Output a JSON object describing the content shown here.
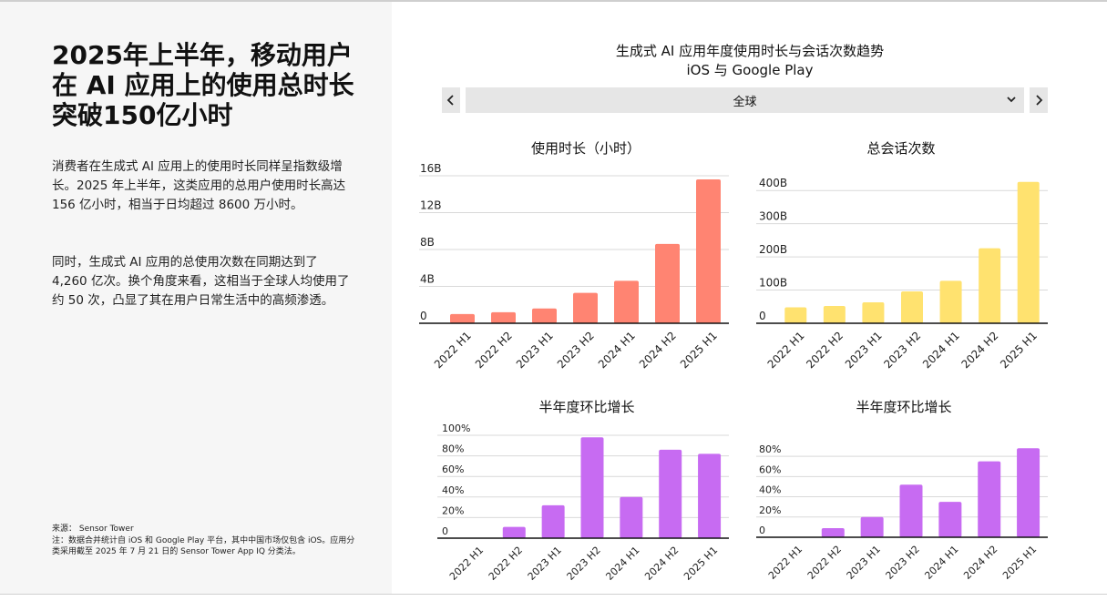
{
  "headline": [
    "2025年上半年，移动用户",
    "在 AI 应用上的使用总时长",
    "突破150亿小时"
  ],
  "paragraph1": "消费者在生成式 AI 应用上的使用时长同样呈指数级增长。2025 年上半年，这类应用的总用户使用时长高达 156 亿小时，相当于日均超过 8600 万小时。",
  "paragraph2": "同时，生成式 AI 应用的总使用次数在同期达到了 4,260 亿次。换个角度来看，这相当于全球人均使用了约 50 次，凸显了其在用户日常生活中的高频渗透。",
  "source": {
    "line1": "来源： Sensor Tower",
    "line2": "注：数据合并统计自 iOS 和 Google Play 平台，其中中国市场仅包含 iOS。应用分类采用截至 2025 年 7 月 21 日的 Sensor Tower App IQ 分类法。"
  },
  "main_title": {
    "line1": "生成式 AI 应用年度使用时长与会话次数趋势",
    "line2": "iOS 与 Google Play"
  },
  "region_select": {
    "value": "全球"
  },
  "icons": {
    "prev": "chevron-left-icon",
    "next": "chevron-right-icon",
    "dropdown": "chevron-down-icon"
  },
  "chart_data": [
    {
      "type": "bar",
      "title": "使用时长（小时）",
      "categories": [
        "2022 H1",
        "2022 H2",
        "2023 H1",
        "2023 H2",
        "2024 H1",
        "2024 H2",
        "2025 H1"
      ],
      "values": [
        1.0,
        1.2,
        1.6,
        3.3,
        4.6,
        8.6,
        15.6
      ],
      "ylim": [
        0,
        16
      ],
      "yticks": [
        0,
        4,
        8,
        12,
        16
      ],
      "ytick_labels": [
        "0",
        "4B",
        "8B",
        "12B",
        "16B"
      ],
      "color": "#FF8472",
      "grid": true
    },
    {
      "type": "bar",
      "title": "总会话次数",
      "categories": [
        "2022 H1",
        "2022 H2",
        "2023 H1",
        "2023 H2",
        "2024 H1",
        "2024 H2",
        "2025 H1"
      ],
      "values": [
        48,
        52,
        63,
        96,
        128,
        226,
        426
      ],
      "ylim": [
        0,
        450
      ],
      "yticks": [
        0,
        100,
        200,
        300,
        400
      ],
      "ytick_labels": [
        "0",
        "100B",
        "200B",
        "300B",
        "400B"
      ],
      "color": "#FFE26F",
      "grid": true
    },
    {
      "type": "bar",
      "title": "半年度环比增长",
      "categories": [
        "2022 H1",
        "2022 H2",
        "2023 H1",
        "2023 H2",
        "2024 H1",
        "2024 H2",
        "2025 H1"
      ],
      "values": [
        0,
        11,
        32,
        98,
        40,
        86,
        82
      ],
      "ylim": [
        0,
        100
      ],
      "yticks": [
        0,
        20,
        40,
        60,
        80,
        100
      ],
      "ytick_labels": [
        "0",
        "20%",
        "40%",
        "60%",
        "80%",
        "100%"
      ],
      "color": "#C76BF2",
      "grid": true
    },
    {
      "type": "bar",
      "title": "半年度环比增长",
      "categories": [
        "2022 H1",
        "2022 H2",
        "2023 H1",
        "2023 H2",
        "2024 H1",
        "2024 H2",
        "2025 H1"
      ],
      "values": [
        0,
        9,
        20,
        52,
        35,
        75,
        88
      ],
      "ylim": [
        0,
        90
      ],
      "yticks": [
        0,
        20,
        40,
        60,
        80
      ],
      "ytick_labels": [
        "0",
        "20%",
        "40%",
        "60%",
        "80%"
      ],
      "color": "#C76BF2",
      "grid": true
    }
  ]
}
